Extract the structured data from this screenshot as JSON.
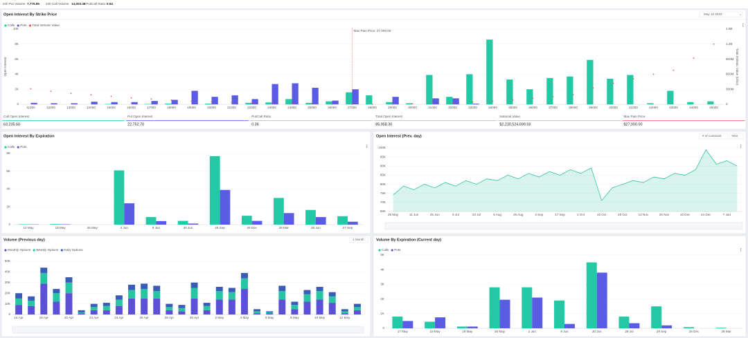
{
  "header": {
    "stats": [
      {
        "label": "24h Put Volume",
        "value": "7,775.85"
      },
      {
        "label": "24h Call Volume",
        "value": "14,003.38"
      },
      {
        "label": "Put/Call Ratio",
        "value": "0.54"
      }
    ]
  },
  "summary": [
    {
      "label": "Call Open Interest",
      "value": "63,235.60"
    },
    {
      "label": "Put Open Interest",
      "value": "22,752.70"
    },
    {
      "label": "Put/Call Ratio",
      "value": "0.36"
    },
    {
      "label": "Total Open Interest",
      "value": "85,958.30"
    },
    {
      "label": "Notional Value",
      "value": "$2,230,524,699.59"
    },
    {
      "label": "Max Pain Price",
      "value": "$27,000.00"
    }
  ],
  "chart_data": [
    {
      "type": "bar",
      "title": "Open Interest By Strike Price",
      "control": "May 16 2023",
      "y_label": "Open Interest",
      "y2_label": "Total Intrinsic Value (USD)",
      "annotation": {
        "text": "Max Pain Price: 27,000.00",
        "category": "27000"
      },
      "categories": [
        "11000",
        "12000",
        "13000",
        "14000",
        "15000",
        "16000",
        "17000",
        "18000",
        "19000",
        "20000",
        "21000",
        "22000",
        "23000",
        "24000",
        "25000",
        "26000",
        "27000",
        "28000",
        "29000",
        "30000",
        "31000",
        "32000",
        "33000",
        "34000",
        "35000",
        "36000",
        "37000",
        "38000",
        "39000",
        "40000",
        "41000",
        "42000",
        "43000",
        "44000",
        "45000"
      ],
      "series": [
        {
          "name": "Calls",
          "color": "#22c9a4",
          "values": [
            0,
            0,
            0,
            0,
            50,
            0,
            50,
            100,
            0,
            100,
            0,
            200,
            250,
            700,
            200,
            400,
            1600,
            1200,
            300,
            150,
            3900,
            1000,
            4000,
            8600,
            3300,
            2000,
            3500,
            3700,
            5900,
            3400,
            3900,
            150,
            1800,
            300,
            400
          ]
        },
        {
          "name": "Puts",
          "color": "#5b5ce6",
          "values": [
            200,
            150,
            150,
            350,
            300,
            300,
            450,
            600,
            1800,
            1000,
            1200,
            700,
            2700,
            2800,
            2200,
            500,
            2000,
            0,
            1000,
            0,
            800,
            800,
            100,
            0,
            0,
            0,
            0,
            0,
            0,
            0,
            0,
            0,
            0,
            0,
            0
          ]
        },
        {
          "name": "Total Intrinsic Value",
          "color": "#f05a5a",
          "axis": "y2",
          "values": [
            310000000,
            260000000,
            220000000,
            190000000,
            160000000,
            130000000,
            105000000,
            85000000,
            65000000,
            50000000,
            38000000,
            28000000,
            20000000,
            14000000,
            8000000,
            4000000,
            2000000,
            3000000,
            6000000,
            12000000,
            20000000,
            30000000,
            45000000,
            65000000,
            90000000,
            120000000,
            155000000,
            195000000,
            330000000,
            420000000,
            510000000,
            600000000,
            680000000,
            920000000,
            1200000000
          ]
        }
      ],
      "ylim": [
        0,
        10000
      ],
      "yticks": [
        0,
        {
          "value": 2000,
          "label": "2K"
        },
        {
          "value": 4000,
          "label": "4K"
        },
        {
          "value": 6000,
          "label": "6K"
        },
        {
          "value": 8000,
          "label": "8K"
        },
        {
          "value": 10000,
          "label": "10K"
        }
      ],
      "y2lim": [
        0,
        1500000000
      ],
      "y2ticks": [
        0,
        {
          "value": 300000000,
          "label": "300M"
        },
        {
          "value": 600000000,
          "label": "600M"
        },
        {
          "value": 900000000,
          "label": "900M"
        },
        {
          "value": 1200000000,
          "label": "1.2B"
        },
        {
          "value": 1500000000,
          "label": "1.5B"
        }
      ],
      "grid": true
    },
    {
      "type": "bar",
      "title": "Open Interest By Expiration",
      "categories": [
        "12 May",
        "19 May",
        "26 May",
        "2 Jun",
        "9 Jun",
        "30 Jun",
        "29 Sep",
        "29 Dec",
        "29 Mar",
        "28 Jun",
        "27 Sep"
      ],
      "series": [
        {
          "name": "Calls",
          "color": "#22c9a4",
          "values": [
            40,
            60,
            0,
            6100,
            850,
            420,
            7700,
            1000,
            3000,
            1650,
            950
          ]
        },
        {
          "name": "Puts",
          "color": "#5b5ce6",
          "values": [
            30,
            40,
            0,
            2400,
            400,
            120,
            3900,
            420,
            1300,
            850,
            330
          ]
        }
      ],
      "ylim": [
        0,
        8000
      ],
      "yticks": [
        0,
        {
          "value": 2000,
          "label": "2K"
        },
        {
          "value": 4000,
          "label": "4K"
        },
        {
          "value": 6000,
          "label": "6K"
        },
        {
          "value": 8000,
          "label": "8K"
        }
      ],
      "grid": true
    },
    {
      "type": "area",
      "title": "Open Interest (Prev. day)",
      "controls": [
        "# of contracts",
        "Year"
      ],
      "color": "#2ec4a0",
      "categories": [
        "28 May",
        null,
        "11 Jun",
        null,
        "25 Jun",
        null,
        "9 Jul",
        null,
        "23 Jul",
        null,
        "6 Aug",
        null,
        "20 Aug",
        null,
        "3 Sep",
        null,
        "17 Sep",
        null,
        "1 Oct",
        null,
        "15 Oct",
        null,
        "29 Oct",
        null,
        "12 Nov",
        null,
        "26 Nov",
        null,
        "10 Dec",
        null,
        "24 Dec",
        null,
        "7 Jan",
        null
      ],
      "values": [
        74000,
        79000,
        77000,
        80000,
        78000,
        81000,
        79000,
        82000,
        80000,
        83000,
        82000,
        85000,
        83000,
        86000,
        84000,
        87000,
        85000,
        88000,
        86000,
        89000,
        71000,
        78000,
        80000,
        82000,
        81000,
        84000,
        83000,
        86000,
        85000,
        88000,
        99000,
        91000,
        93000,
        90000
      ],
      "ylim": [
        65000,
        100000
      ],
      "yticks": [
        {
          "value": 65000,
          "label": "65K"
        },
        {
          "value": 70000,
          "label": "70K"
        },
        {
          "value": 75000,
          "label": "75K"
        },
        {
          "value": 80000,
          "label": "80K"
        },
        {
          "value": 85000,
          "label": "85K"
        },
        {
          "value": 90000,
          "label": "90K"
        },
        {
          "value": 95000,
          "label": "95K"
        },
        {
          "value": 100000,
          "label": "100K"
        }
      ],
      "grid": true
    },
    {
      "type": "bar",
      "stacked": true,
      "title": "Volume (Previous day)",
      "control": "1 Month",
      "categories": [
        "16 Apr",
        null,
        "18 Apr",
        null,
        "20 Apr",
        null,
        "22 Apr",
        null,
        "24 Apr",
        null,
        "26 Apr",
        null,
        "28 Apr",
        null,
        "30 Apr",
        null,
        "2 May",
        null,
        "4 May",
        null,
        "6 May",
        null,
        "8 May",
        null,
        "10 May",
        null,
        "12 May",
        null
      ],
      "series": [
        {
          "name": "Monthly Options",
          "color": "#5b50d6",
          "values": [
            9000,
            8000,
            29000,
            12000,
            20000,
            1000,
            4000,
            4000,
            8000,
            15000,
            15000,
            15000,
            4000,
            3000,
            15000,
            4000,
            14000,
            14000,
            24000,
            1000,
            1000,
            14000,
            5000,
            12000,
            14000,
            11000,
            1000,
            4000
          ]
        },
        {
          "name": "Weekly Options",
          "color": "#27c5a1",
          "values": [
            6000,
            5000,
            10000,
            8000,
            10000,
            1000,
            3000,
            4000,
            6000,
            8000,
            9000,
            7000,
            3000,
            3000,
            10000,
            4000,
            8000,
            7000,
            10000,
            2000,
            1000,
            8000,
            4000,
            7000,
            8000,
            6000,
            2000,
            3000
          ]
        },
        {
          "name": "Daily Options",
          "color": "#3a5bb8",
          "values": [
            5000,
            4000,
            5000,
            4000,
            5000,
            2000,
            3000,
            3000,
            4000,
            5000,
            5000,
            5000,
            3000,
            3000,
            5000,
            3000,
            4000,
            4000,
            5000,
            2000,
            1000,
            5000,
            3000,
            4000,
            4000,
            4000,
            2000,
            3000
          ]
        }
      ],
      "ylim": [
        0,
        50000
      ],
      "yticks": [
        0,
        {
          "value": 10000,
          "label": "10K"
        },
        {
          "value": 20000,
          "label": "20K"
        },
        {
          "value": 30000,
          "label": "30K"
        },
        {
          "value": 40000,
          "label": "40K"
        },
        {
          "value": 50000,
          "label": "50K"
        }
      ],
      "grid": true
    },
    {
      "type": "bar",
      "title": "Volume By Expiration (Current day)",
      "categories": [
        "17 May",
        "18 May",
        "19 May",
        "26 May",
        "2 Jun",
        "9 Jun",
        "30 Jun",
        "28 Jul",
        "29 Sep",
        "29 Dec",
        "29 Mar"
      ],
      "series": [
        {
          "name": "Calls",
          "color": "#22c9a4",
          "values": [
            800,
            450,
            120,
            2800,
            2800,
            1900,
            4500,
            800,
            1500,
            80,
            40
          ]
        },
        {
          "name": "Puts",
          "color": "#5b5ce6",
          "values": [
            500,
            750,
            120,
            1950,
            2100,
            300,
            3800,
            350,
            200,
            0,
            0
          ]
        }
      ],
      "ylim": [
        0,
        5000
      ],
      "yticks": [
        0,
        {
          "value": 1000,
          "label": "1K"
        },
        {
          "value": 2000,
          "label": "2K"
        },
        {
          "value": 3000,
          "label": "3K"
        },
        {
          "value": 4000,
          "label": "4K"
        },
        {
          "value": 5000,
          "label": "5K"
        }
      ],
      "grid": true
    }
  ]
}
